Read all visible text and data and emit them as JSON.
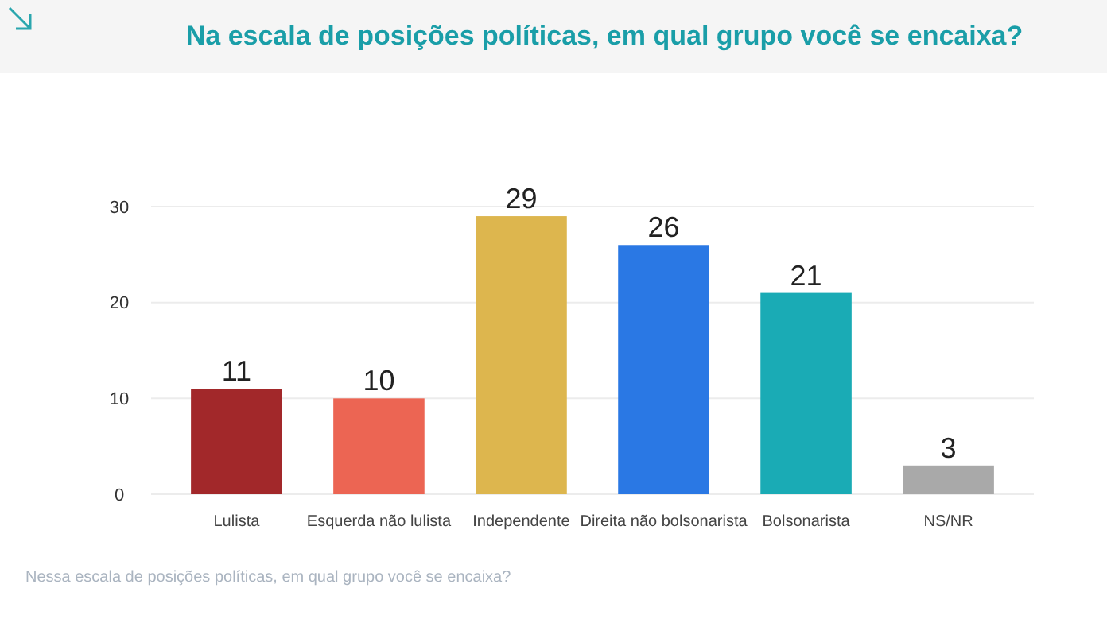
{
  "chart_data": {
    "type": "bar",
    "title": "Na escala de posições políticas, em qual grupo você se encaixa?",
    "categories": [
      "Lulista",
      "Esquerda não lulista",
      "Independente",
      "Direita não bolsonarista",
      "Bolsonarista",
      "NS/NR"
    ],
    "values": [
      11,
      10,
      29,
      26,
      21,
      3
    ],
    "colors": [
      "#a2282a",
      "#ec6553",
      "#ddb64e",
      "#2a78e4",
      "#1aabb5",
      "#a9a9a9"
    ],
    "ylim": [
      0,
      30
    ],
    "yticks": [
      0,
      10,
      20,
      30
    ],
    "grid": "y",
    "data_labels": true,
    "annotations": [
      "Nessa escala de posições políticas, em qual grupo você se encaixa?"
    ]
  }
}
